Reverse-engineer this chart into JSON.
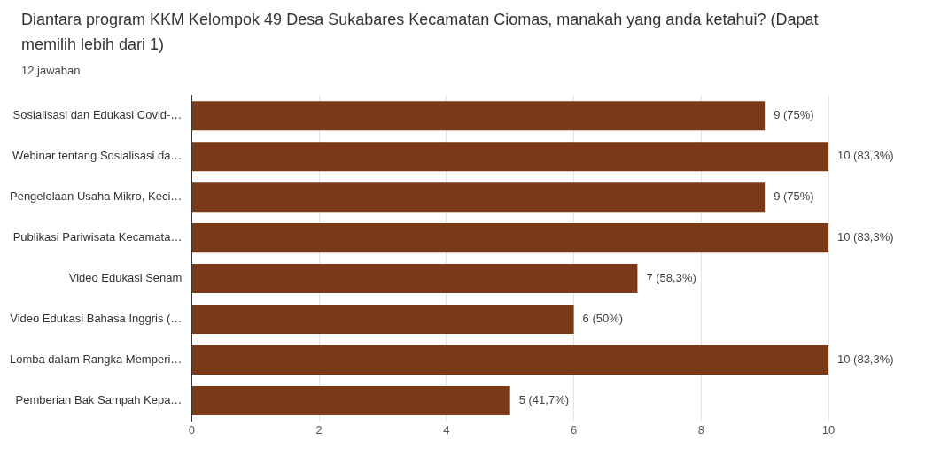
{
  "chart_data": {
    "type": "bar",
    "orientation": "horizontal",
    "title": "Diantara program KKM Kelompok 49 Desa Sukabares Kecamatan Ciomas, manakah yang anda ketahui? (Dapat memilih lebih dari 1)",
    "subtitle": "12 jawaban",
    "categories": [
      "Sosialisasi dan Edukasi Covid-…",
      "Webinar tentang Sosialisasi da…",
      "Pengelolaan Usaha Mikro, Keci…",
      "Publikasi Pariwisata Kecamata…",
      "Video Edukasi Senam",
      "Video Edukasi Bahasa Inggris (…",
      "Lomba dalam Rangka Memperi…",
      "Pemberian Bak Sampah Kepa…"
    ],
    "values": [
      9,
      10,
      9,
      10,
      7,
      6,
      10,
      5
    ],
    "value_labels": [
      "9 (75%)",
      "10 (83,3%)",
      "9 (75%)",
      "10 (83,3%)",
      "7 (58,3%)",
      "6 (50%)",
      "10 (83,3%)",
      "5 (41,7%)"
    ],
    "color": "#7b3a17",
    "xlim": [
      0,
      10
    ],
    "xticks": [
      0,
      2,
      4,
      6,
      8,
      10
    ],
    "grid": "x",
    "legend": false
  }
}
